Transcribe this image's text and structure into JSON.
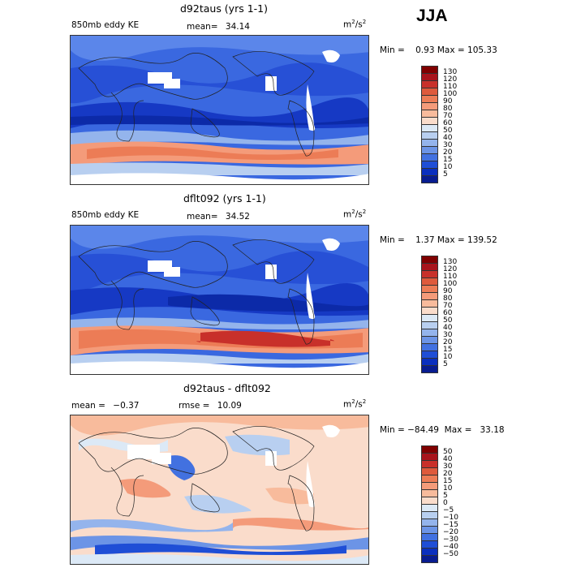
{
  "season": "JJA",
  "panels": [
    {
      "title": "d92taus (yrs 1-1)",
      "left_label": "850mb eddy KE",
      "stat_label": "mean=",
      "stat_value": "34.14",
      "stat2_label": "",
      "stat2_value": "",
      "unit": "m",
      "unit_sup": "2",
      "unit_mid": "/s",
      "unit_sup2": "2",
      "minmax_text": "Min =    0.93 Max = 105.33",
      "colorbar_levels": [
        "130",
        "120",
        "110",
        "100",
        "90",
        "80",
        "70",
        "60",
        "50",
        "40",
        "30",
        "20",
        "15",
        "10",
        "5"
      ],
      "colorbar_colors": [
        "#800000",
        "#a8141c",
        "#c8302a",
        "#de5a3c",
        "#ec7c56",
        "#f49b7a",
        "#f8bb9c",
        "#fadccb",
        "#dce9f6",
        "#b8cff0",
        "#94b4ec",
        "#6c94e6",
        "#4271e0",
        "#1f4ed6",
        "#0a2fbe",
        "#081c90"
      ]
    },
    {
      "title": "dflt092 (yrs 1-1)",
      "left_label": "850mb eddy KE",
      "stat_label": "mean=",
      "stat_value": "34.52",
      "stat2_label": "",
      "stat2_value": "",
      "unit": "m",
      "unit_sup": "2",
      "unit_mid": "/s",
      "unit_sup2": "2",
      "minmax_text": "Min =    1.37 Max = 139.52",
      "colorbar_levels": [
        "130",
        "120",
        "110",
        "100",
        "90",
        "80",
        "70",
        "60",
        "50",
        "40",
        "30",
        "20",
        "15",
        "10",
        "5"
      ],
      "colorbar_colors": [
        "#800000",
        "#a8141c",
        "#c8302a",
        "#de5a3c",
        "#ec7c56",
        "#f49b7a",
        "#f8bb9c",
        "#fadccb",
        "#dce9f6",
        "#b8cff0",
        "#94b4ec",
        "#6c94e6",
        "#4271e0",
        "#1f4ed6",
        "#0a2fbe",
        "#081c90"
      ]
    },
    {
      "title": "d92taus - dflt092",
      "left_label": "",
      "stat_label": "mean =",
      "stat_value": "−0.37",
      "stat2_label": "rmse =",
      "stat2_value": "10.09",
      "unit": "m",
      "unit_sup": "2",
      "unit_mid": "/s",
      "unit_sup2": "2",
      "minmax_text": "Min = −84.49  Max =   33.18",
      "colorbar_levels": [
        "50",
        "40",
        "30",
        "20",
        "15",
        "10",
        "5",
        "0",
        "−5",
        "−10",
        "−15",
        "−20",
        "−30",
        "−40",
        "−50"
      ],
      "colorbar_colors": [
        "#800000",
        "#a8141c",
        "#c8302a",
        "#de5a3c",
        "#ec7c56",
        "#f49b7a",
        "#f8bb9c",
        "#fadccb",
        "#dce9f6",
        "#b8cff0",
        "#94b4ec",
        "#6c94e6",
        "#4271e0",
        "#1f4ed6",
        "#0a2fbe",
        "#081c90"
      ]
    }
  ],
  "chart_data": [
    {
      "type": "heatmap",
      "title": "d92taus (yrs 1-1)",
      "subtitle": "850mb eddy KE",
      "units": "m2/s2",
      "mean": 34.14,
      "min": 0.93,
      "max": 105.33,
      "contour_levels": [
        5,
        10,
        15,
        20,
        30,
        40,
        50,
        60,
        70,
        80,
        90,
        100,
        110,
        120,
        130
      ]
    },
    {
      "type": "heatmap",
      "title": "dflt092 (yrs 1-1)",
      "subtitle": "850mb eddy KE",
      "units": "m2/s2",
      "mean": 34.52,
      "min": 1.37,
      "max": 139.52,
      "contour_levels": [
        5,
        10,
        15,
        20,
        30,
        40,
        50,
        60,
        70,
        80,
        90,
        100,
        110,
        120,
        130
      ]
    },
    {
      "type": "heatmap",
      "title": "d92taus - dflt092",
      "units": "m2/s2",
      "mean": -0.37,
      "rmse": 10.09,
      "min": -84.49,
      "max": 33.18,
      "contour_levels": [
        -50,
        -40,
        -30,
        -20,
        -15,
        -10,
        -5,
        0,
        5,
        10,
        15,
        20,
        30,
        40,
        50
      ]
    }
  ]
}
